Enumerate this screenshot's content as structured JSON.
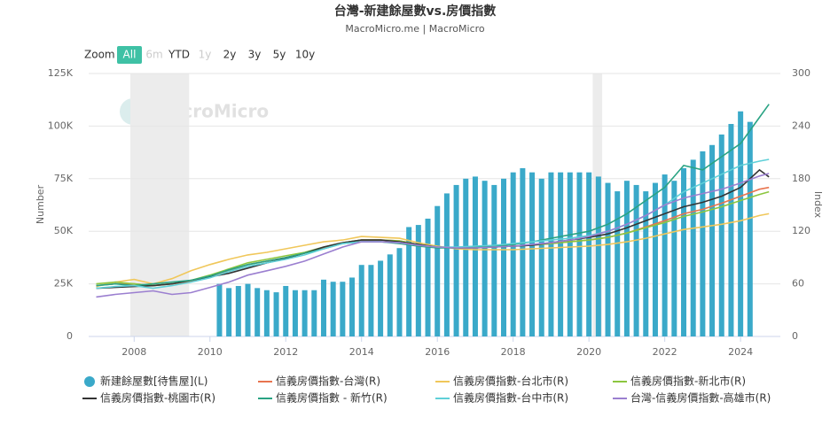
{
  "chart_data": {
    "type": "bar-line",
    "title": "台灣-新建餘屋數vs.房價指數",
    "subtitle": "MacroMicro.me | MacroMicro",
    "watermark": "MacroMicro",
    "zoom": {
      "label": "Zoom",
      "buttons": [
        "All",
        "6m",
        "YTD",
        "1y",
        "2y",
        "3y",
        "5y",
        "10y"
      ],
      "selected": 0,
      "disabled": [
        1,
        3
      ]
    },
    "y_label": "Number",
    "y2_label": "Index",
    "xlim": [
      2006.8,
      2025.05
    ],
    "xticks": [
      2008,
      2010,
      2012,
      2014,
      2016,
      2018,
      2020,
      2022,
      2024
    ],
    "ylim": [
      0,
      125000
    ],
    "yticks": [
      0,
      {
        "value": 25000,
        "label": "25K"
      },
      {
        "value": 50000,
        "label": "50K"
      },
      {
        "value": 75000,
        "label": "75K"
      },
      {
        "value": 100000,
        "label": "100K"
      },
      {
        "value": 125000,
        "label": "125K"
      }
    ],
    "y2lim": [
      0,
      300
    ],
    "y2ticks": [
      0,
      60,
      120,
      180,
      240,
      300
    ],
    "grid": true,
    "shaded_ranges": [
      [
        2007.9,
        2009.45
      ],
      [
        2020.1,
        2020.35
      ]
    ],
    "x": [
      2007,
      2007.5,
      2008,
      2008.5,
      2009,
      2009.5,
      2010,
      2010.5,
      2011,
      2011.5,
      2012,
      2012.5,
      2013,
      2013.5,
      2014,
      2014.5,
      2015,
      2015.5,
      2016,
      2016.5,
      2017,
      2017.5,
      2018,
      2018.5,
      2019,
      2019.5,
      2020,
      2020.5,
      2021,
      2021.5,
      2022,
      2022.5,
      2023,
      2023.5,
      2024,
      2024.5,
      2024.75
    ],
    "series": [
      {
        "name": "新建餘屋數[待售屋](L)",
        "type": "bar",
        "color": "#3aa9c9",
        "x": [
          2010.25,
          2010.5,
          2010.75,
          2011,
          2011.25,
          2011.5,
          2011.75,
          2012,
          2012.25,
          2012.5,
          2012.75,
          2013,
          2013.25,
          2013.5,
          2013.75,
          2014,
          2014.25,
          2014.5,
          2014.75,
          2015,
          2015.25,
          2015.5,
          2015.75,
          2016,
          2016.25,
          2016.5,
          2016.75,
          2017,
          2017.25,
          2017.5,
          2017.75,
          2018,
          2018.25,
          2018.5,
          2018.75,
          2019,
          2019.25,
          2019.5,
          2019.75,
          2020,
          2020.25,
          2020.5,
          2020.75,
          2021,
          2021.25,
          2021.5,
          2021.75,
          2022,
          2022.25,
          2022.5,
          2022.75,
          2023,
          2023.25,
          2023.5,
          2023.75,
          2024,
          2024.25
        ],
        "values": [
          25000,
          23000,
          24000,
          25000,
          23000,
          22000,
          21000,
          24000,
          22000,
          22000,
          22000,
          27000,
          26000,
          26000,
          28000,
          34000,
          34000,
          36000,
          39000,
          42000,
          52000,
          53000,
          56000,
          62000,
          68000,
          72000,
          75000,
          76000,
          74000,
          72000,
          75000,
          78000,
          80000,
          78000,
          75000,
          78000,
          78000,
          78000,
          78000,
          78000,
          76000,
          73000,
          69000,
          74000,
          72000,
          69000,
          73000,
          77000,
          74000,
          80000,
          84000,
          88000,
          91000,
          96000,
          101000,
          107000,
          102000
        ]
      },
      {
        "name": "信義房價指數-台灣(R)",
        "type": "line",
        "axis": "y2",
        "color": "#e8744f",
        "values": [
          58,
          60,
          60,
          58,
          60,
          63,
          68,
          75,
          82,
          86,
          90,
          95,
          101,
          107,
          110,
          110,
          109,
          105,
          102,
          101,
          102,
          102,
          103,
          104,
          106,
          108,
          110,
          113,
          118,
          125,
          132,
          140,
          145,
          152,
          160,
          168,
          170
        ]
      },
      {
        "name": "信義房價指數-台北市(R)",
        "type": "line",
        "axis": "y2",
        "color": "#f0c75a",
        "values": [
          57,
          62,
          65,
          60,
          66,
          75,
          82,
          88,
          93,
          96,
          100,
          104,
          108,
          110,
          114,
          113,
          112,
          107,
          103,
          100,
          99,
          99,
          99,
          100,
          101,
          102,
          103,
          105,
          108,
          112,
          117,
          122,
          125,
          128,
          132,
          138,
          140
        ]
      },
      {
        "name": "信義房價指數-新北市(R)",
        "type": "line",
        "axis": "y2",
        "color": "#8cc63f",
        "values": [
          60,
          62,
          60,
          58,
          60,
          64,
          70,
          77,
          84,
          88,
          92,
          96,
          102,
          107,
          110,
          110,
          109,
          105,
          102,
          101,
          101,
          102,
          103,
          104,
          106,
          108,
          110,
          113,
          118,
          124,
          130,
          137,
          142,
          148,
          155,
          162,
          165
        ]
      },
      {
        "name": "信義房價指數-桃園市(R)",
        "type": "line",
        "axis": "y2",
        "color": "#333333",
        "values": [
          55,
          56,
          57,
          58,
          60,
          64,
          68,
          72,
          78,
          84,
          89,
          95,
          102,
          107,
          110,
          110,
          108,
          105,
          102,
          101,
          101,
          102,
          103,
          104,
          107,
          110,
          113,
          117,
          124,
          132,
          140,
          148,
          153,
          160,
          170,
          190,
          182
        ]
      },
      {
        "name": "信義房價指數 - 新竹(R)",
        "type": "line",
        "axis": "y2",
        "color": "#29a383",
        "values": [
          58,
          60,
          58,
          60,
          62,
          64,
          69,
          76,
          82,
          86,
          90,
          95,
          100,
          106,
          108,
          108,
          106,
          103,
          101,
          101,
          102,
          103,
          105,
          108,
          112,
          116,
          120,
          128,
          140,
          155,
          170,
          195,
          190,
          205,
          220,
          250,
          265
        ]
      },
      {
        "name": "信義房價指數-台中市(R)",
        "type": "line",
        "axis": "y2",
        "color": "#5fd0d8",
        "values": [
          55,
          57,
          58,
          55,
          58,
          62,
          67,
          74,
          80,
          84,
          88,
          93,
          100,
          106,
          108,
          108,
          107,
          104,
          102,
          102,
          103,
          104,
          106,
          108,
          110,
          112,
          115,
          120,
          128,
          138,
          150,
          165,
          175,
          185,
          195,
          200,
          202
        ]
      },
      {
        "name": "台灣-信義房價指數-高雄市(R)",
        "type": "line",
        "axis": "y2",
        "color": "#9b7fd0",
        "values": [
          45,
          48,
          50,
          52,
          48,
          50,
          56,
          62,
          70,
          75,
          80,
          86,
          94,
          102,
          108,
          108,
          107,
          104,
          102,
          101,
          101,
          102,
          103,
          105,
          107,
          110,
          114,
          120,
          128,
          138,
          150,
          158,
          163,
          168,
          175,
          183,
          186
        ]
      }
    ]
  }
}
